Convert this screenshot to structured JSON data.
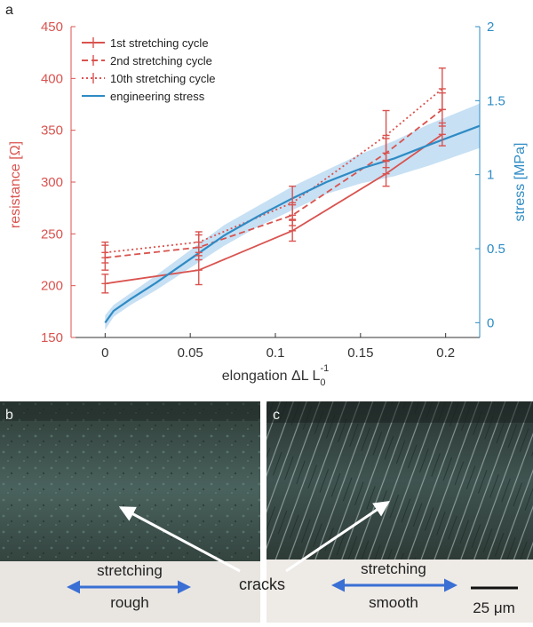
{
  "panels": {
    "a": "a",
    "b": "b",
    "c": "c"
  },
  "chart_data": {
    "type": "line",
    "xlabel": "elongation ΔL L",
    "xlabel_sub": "0",
    "xlabel_sup": "-1",
    "ylabel_left": "resistance [Ω]",
    "ylabel_right": "stress [MPa]",
    "xlim": [
      -0.02,
      0.22
    ],
    "ylim_left": [
      150,
      450
    ],
    "ylim_right": [
      -0.1,
      2.0
    ],
    "x_ticks": [
      0,
      0.05,
      0.1,
      0.15,
      0.2
    ],
    "x_tick_labels": [
      "0",
      "0.05",
      "0.1",
      "0.15",
      "0.2"
    ],
    "y_ticks_left": [
      150,
      200,
      250,
      300,
      350,
      400,
      450
    ],
    "y_ticks_right": [
      0,
      0.5,
      1,
      1.5,
      2
    ],
    "y_tick_labels_right": [
      "0",
      "0.5",
      "1",
      "1.5",
      "2"
    ],
    "legend_position": "top-left",
    "series": [
      {
        "name": "1st stretching cycle",
        "axis": "left",
        "color": "#d9534f",
        "dash": "solid",
        "x": [
          0,
          0.055,
          0.11,
          0.165,
          0.198
        ],
        "y": [
          202,
          215,
          253,
          308,
          346
        ],
        "err": [
          9,
          14,
          10,
          12,
          11
        ]
      },
      {
        "name": "2nd stretching cycle",
        "axis": "left",
        "color": "#d9534f",
        "dash": "dashed",
        "x": [
          0,
          0.055,
          0.11,
          0.165,
          0.198
        ],
        "y": [
          227,
          237,
          268,
          328,
          370
        ],
        "err": [
          12,
          12,
          10,
          14,
          16
        ]
      },
      {
        "name": "10th stretching cycle",
        "axis": "left",
        "color": "#d9534f",
        "dash": "dotted",
        "x": [
          0,
          0.055,
          0.11,
          0.165,
          0.198
        ],
        "y": [
          232,
          242,
          280,
          345,
          390
        ],
        "err": [
          10,
          10,
          16,
          24,
          20
        ]
      },
      {
        "name": "engineering stress",
        "axis": "right",
        "color": "#2e8bc4",
        "band_color": "#a9cfee",
        "x": [
          0,
          0.005,
          0.015,
          0.03,
          0.05,
          0.07,
          0.09,
          0.11,
          0.13,
          0.15,
          0.17,
          0.19,
          0.22
        ],
        "y": [
          0.0,
          0.08,
          0.16,
          0.27,
          0.43,
          0.59,
          0.72,
          0.84,
          0.95,
          1.04,
          1.11,
          1.2,
          1.33
        ],
        "band": [
          0.05,
          0.04,
          0.04,
          0.05,
          0.06,
          0.07,
          0.07,
          0.08,
          0.08,
          0.1,
          0.12,
          0.14,
          0.15
        ]
      }
    ]
  },
  "photos": {
    "b": {
      "stretching": "stretching",
      "surface": "rough"
    },
    "c": {
      "stretching": "stretching",
      "surface": "smooth"
    },
    "cracks": "cracks",
    "scale_bar": "25 μm"
  }
}
